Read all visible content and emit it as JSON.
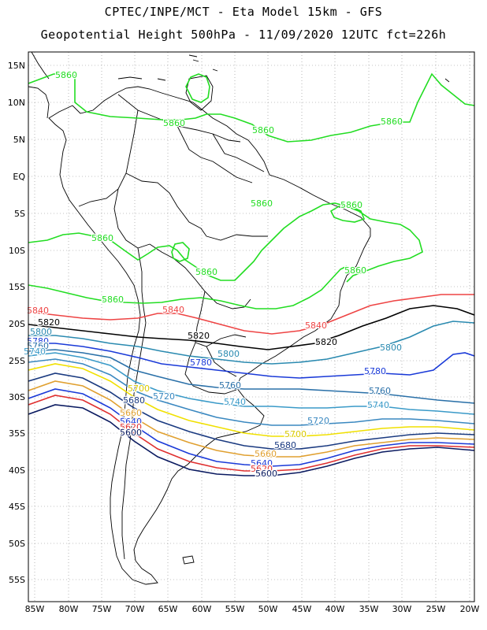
{
  "header": {
    "line1": "CPTEC/INPE/MCT -  Eta Model 15km - GFS",
    "line2": "Geopotential Height 500hPa - 11/09/2020 12UTC fct=226h"
  },
  "axes": {
    "lat_labels": [
      "15N",
      "10N",
      "5N",
      "EQ",
      "5S",
      "10S",
      "15S",
      "20S",
      "25S",
      "30S",
      "35S",
      "40S",
      "45S",
      "50S",
      "55S"
    ],
    "lon_labels": [
      "85W",
      "80W",
      "75W",
      "70W",
      "65W",
      "60W",
      "55W",
      "50W",
      "45W",
      "40W",
      "35W",
      "30W",
      "25W",
      "20W"
    ]
  },
  "colors": {
    "c5860": "#22dd22",
    "c5840": "#ee4444",
    "c5820": "#000000",
    "c5800": "#2a8ab0",
    "c5780": "#1a3ad8",
    "c5760": "#2a70a8",
    "c5740": "#3a9ac8",
    "c5720": "#3a88c0",
    "c5700": "#f0e000",
    "c5680": "#1a3a80",
    "c5660": "#e0a030",
    "c5640": "#1a3ad8",
    "c5620": "#e03030",
    "c5600": "#0a1a60"
  },
  "contours": {
    "labels": [
      {
        "text": "5860",
        "color": "#22dd22"
      },
      {
        "text": "5860",
        "color": "#22dd22"
      },
      {
        "text": "5860",
        "color": "#22dd22"
      },
      {
        "text": "5860",
        "color": "#22dd22"
      },
      {
        "text": "5860",
        "color": "#22dd22"
      },
      {
        "text": "5860",
        "color": "#22dd22"
      },
      {
        "text": "5860",
        "color": "#22dd22"
      },
      {
        "text": "5860",
        "color": "#22dd22"
      },
      {
        "text": "5860",
        "color": "#22dd22"
      },
      {
        "text": "5860",
        "color": "#22dd22"
      },
      {
        "text": "5840",
        "color": "#ee4444"
      },
      {
        "text": "5840",
        "color": "#ee4444"
      },
      {
        "text": "5840",
        "color": "#ee4444"
      },
      {
        "text": "5820",
        "color": "#000000"
      },
      {
        "text": "5820",
        "color": "#000000"
      },
      {
        "text": "5820",
        "color": "#000000"
      },
      {
        "text": "5800",
        "color": "#2a8ab0"
      },
      {
        "text": "5800",
        "color": "#2a8ab0"
      },
      {
        "text": "5800",
        "color": "#2a8ab0"
      },
      {
        "text": "5780",
        "color": "#1a3ad8"
      },
      {
        "text": "5780",
        "color": "#1a3ad8"
      },
      {
        "text": "5780",
        "color": "#1a3ad8"
      },
      {
        "text": "5760",
        "color": "#2a70a8"
      },
      {
        "text": "5760",
        "color": "#2a70a8"
      },
      {
        "text": "5760",
        "color": "#2a70a8"
      },
      {
        "text": "5740",
        "color": "#3a9ac8"
      },
      {
        "text": "5740",
        "color": "#3a9ac8"
      },
      {
        "text": "5740",
        "color": "#3a9ac8"
      },
      {
        "text": "5720",
        "color": "#3a88c0"
      },
      {
        "text": "5720",
        "color": "#3a88c0"
      },
      {
        "text": "5700",
        "color": "#d8c800"
      },
      {
        "text": "5700",
        "color": "#d8c800"
      },
      {
        "text": "5680",
        "color": "#1a3a80"
      },
      {
        "text": "5680",
        "color": "#1a3a80"
      },
      {
        "text": "5660",
        "color": "#e0a030"
      },
      {
        "text": "5660",
        "color": "#e0a030"
      },
      {
        "text": "5640",
        "color": "#1a3ad8"
      },
      {
        "text": "5640",
        "color": "#1a3ad8"
      },
      {
        "text": "5620",
        "color": "#e03030"
      },
      {
        "text": "5620",
        "color": "#e03030"
      },
      {
        "text": "5600",
        "color": "#0a1a60"
      },
      {
        "text": "5600",
        "color": "#0a1a60"
      }
    ]
  }
}
